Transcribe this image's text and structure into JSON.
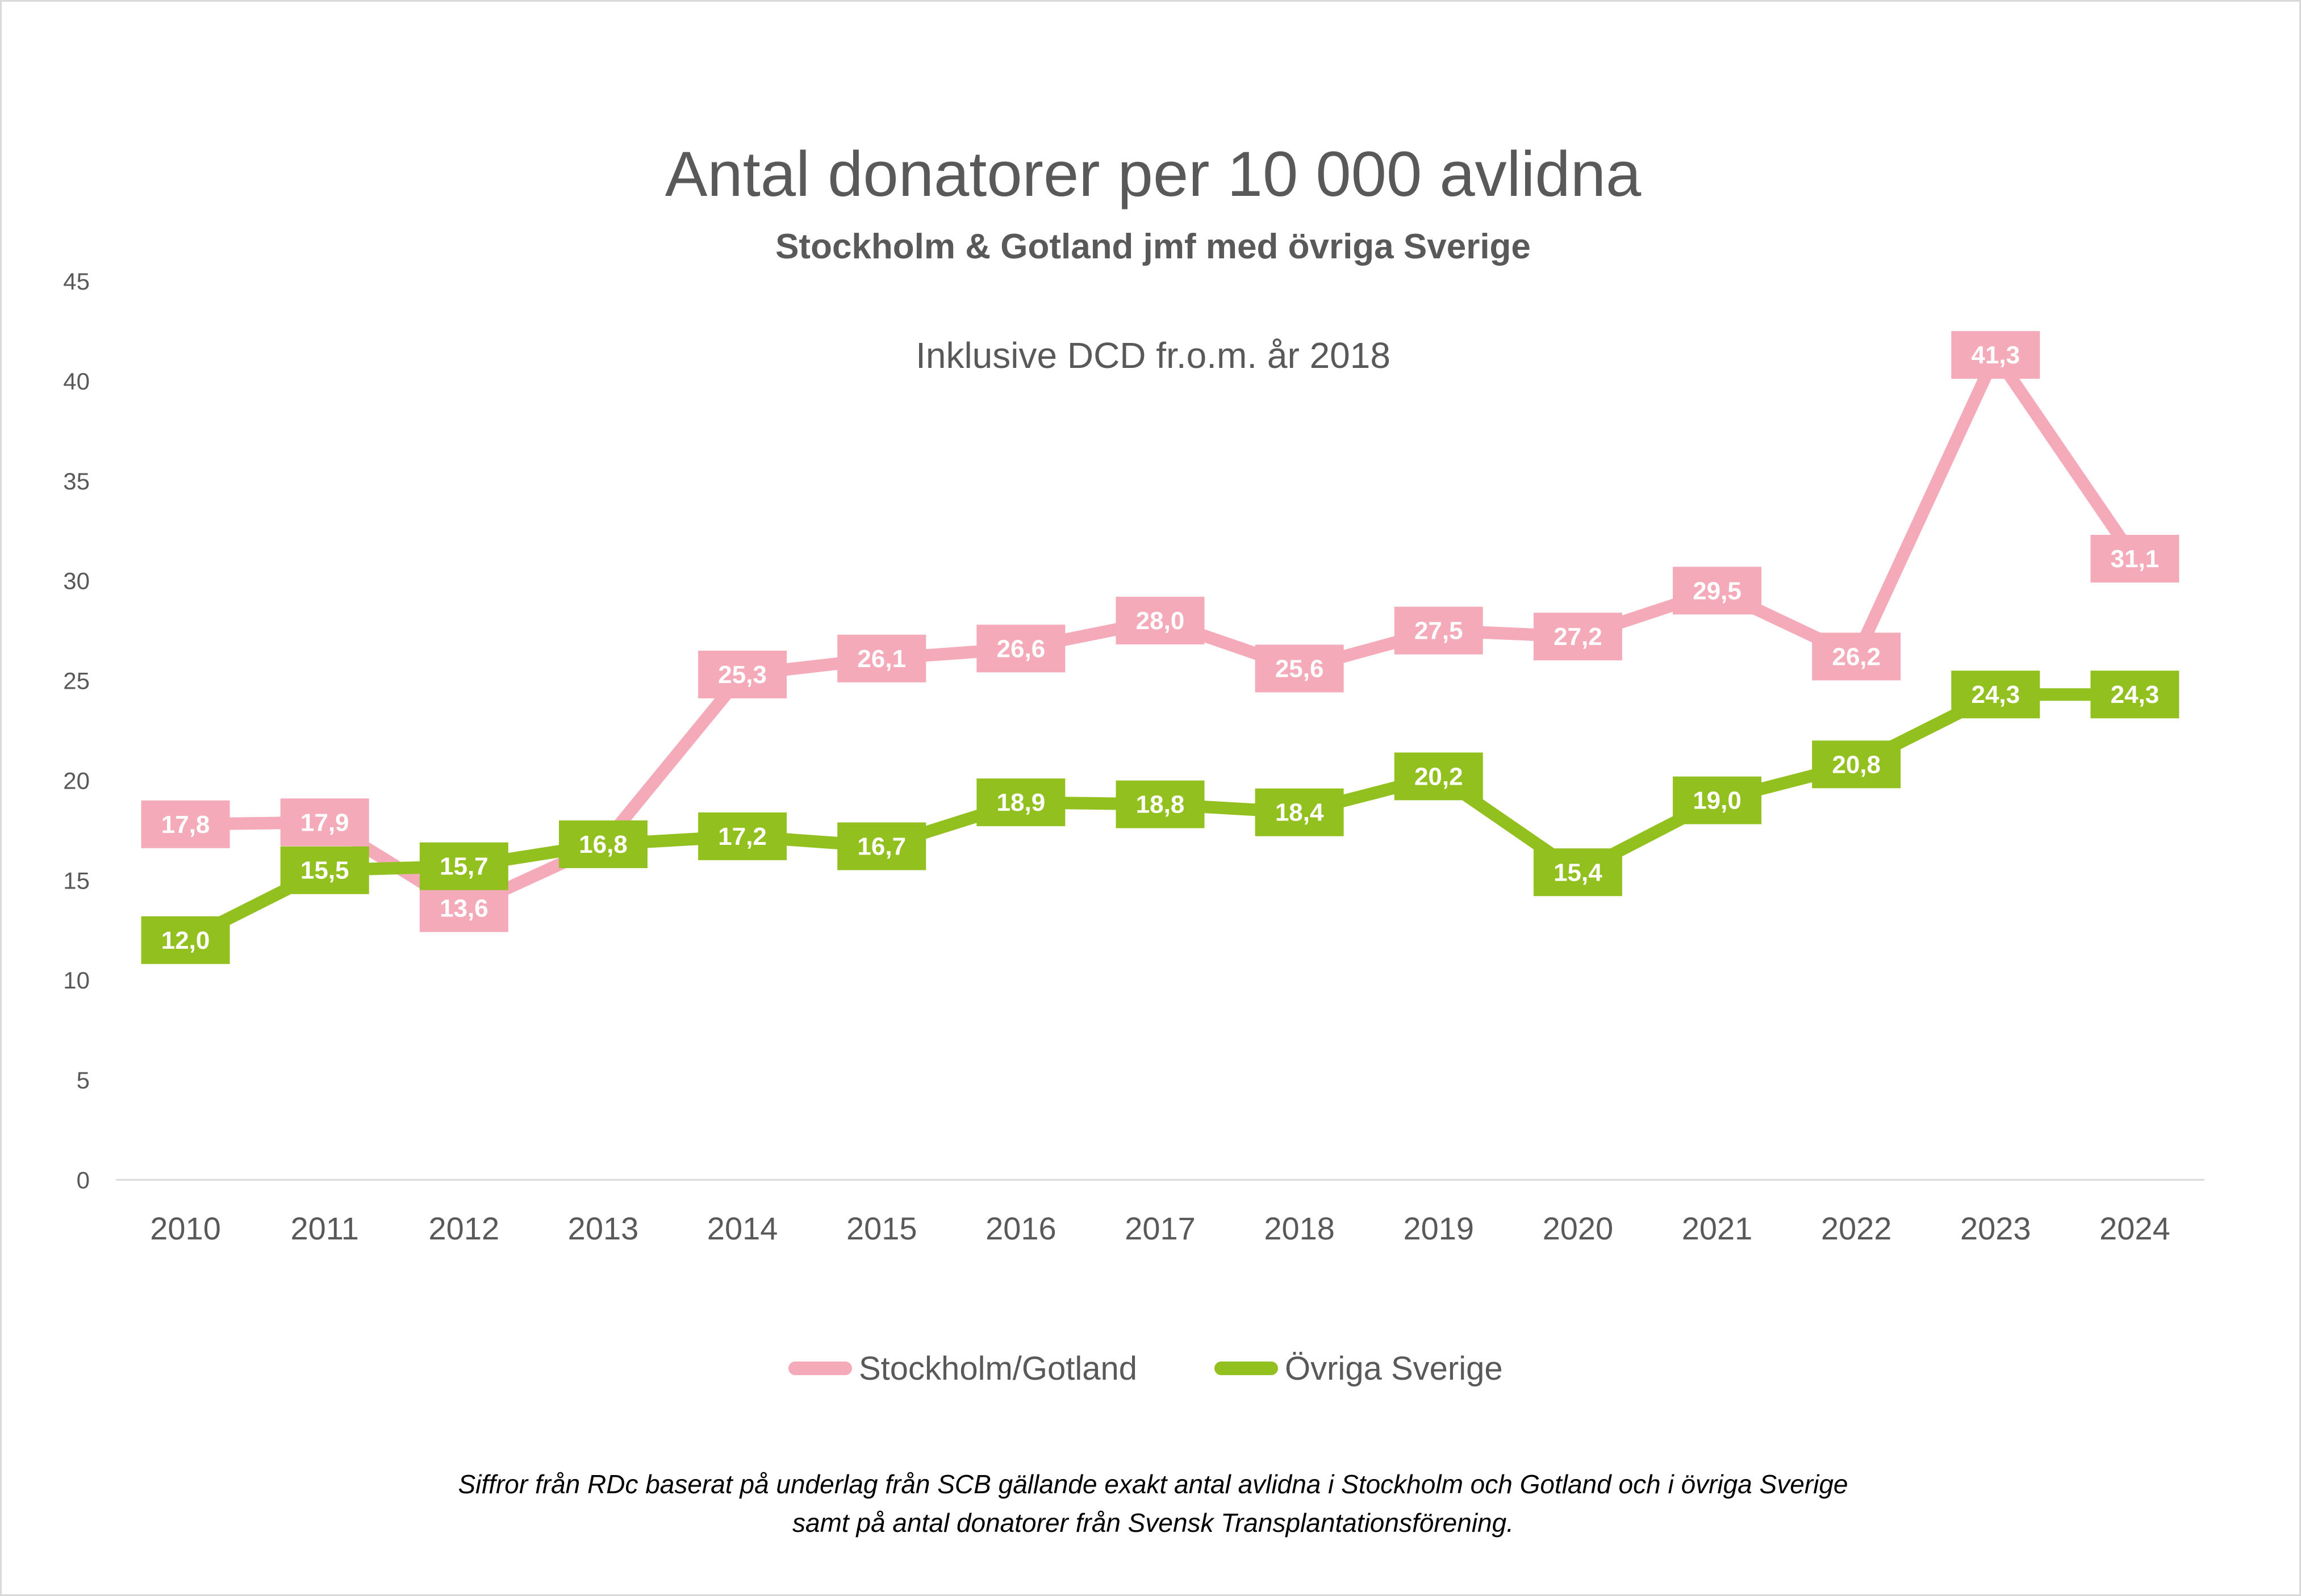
{
  "chart_data": {
    "type": "line",
    "title": "Antal donatorer per 10 000 avlidna",
    "subtitle": "Stockholm & Gotland jmf med övriga Sverige",
    "annotation": "Inklusive DCD fr.o.m. år 2018",
    "categories": [
      "2010",
      "2011",
      "2012",
      "2013",
      "2014",
      "2015",
      "2016",
      "2017",
      "2018",
      "2019",
      "2020",
      "2021",
      "2022",
      "2023",
      "2024"
    ],
    "ylim": [
      0,
      45
    ],
    "yticks": [
      "0",
      "5",
      "10",
      "15",
      "20",
      "25",
      "30",
      "35",
      "40",
      "45"
    ],
    "grid": false,
    "legend_position": "bottom",
    "series": [
      {
        "name": "Stockholm/Gotland",
        "color": "#f4aab9",
        "values": [
          17.8,
          17.9,
          13.6,
          16.8,
          25.3,
          26.1,
          26.6,
          28.0,
          25.6,
          27.5,
          27.2,
          29.5,
          26.2,
          41.3,
          31.1
        ],
        "labels": [
          "17,8",
          "17,9",
          "13,6",
          "",
          "25,3",
          "26,1",
          "26,6",
          "28,0",
          "25,6",
          "27,5",
          "27,2",
          "29,5",
          "26,2",
          "41,3",
          "31,1"
        ]
      },
      {
        "name": "Övriga Sverige",
        "color": "#92c01f",
        "values": [
          12.0,
          15.5,
          15.7,
          16.8,
          17.2,
          16.7,
          18.9,
          18.8,
          18.4,
          20.2,
          15.4,
          19.0,
          20.8,
          24.3,
          24.3
        ],
        "labels": [
          "12,0",
          "15,5",
          "15,7",
          "16,8",
          "17,2",
          "16,7",
          "18,9",
          "18,8",
          "18,4",
          "20,2",
          "15,4",
          "19,0",
          "20,8",
          "24,3",
          "24,3"
        ]
      }
    ],
    "source_line1": "Siffror från RDc baserat på underlag från SCB gällande exakt antal avlidna i Stockholm och Gotland och i övriga Sverige",
    "source_line2": "samt på antal donatorer från Svensk Transplantationsförening."
  }
}
